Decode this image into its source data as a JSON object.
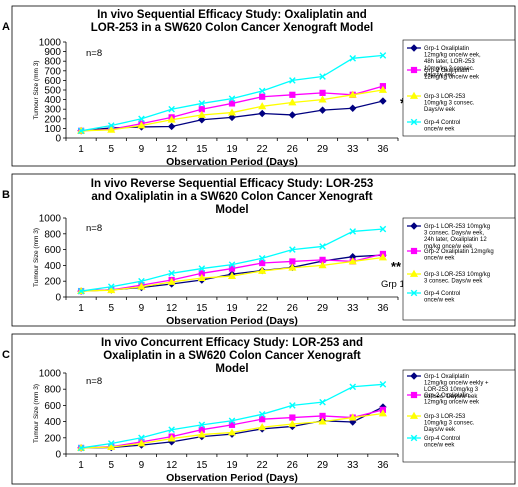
{
  "chart_data": [
    {
      "type": "line",
      "panel_letter": "A",
      "title_lines": [
        "In vivo Sequential Efficacy Study: Oxaliplatin and",
        "LOR-253 in a SW620 Colon Cancer Xenograft Model"
      ],
      "xlabel": "Observation Period (Days)",
      "ylabel": "Tumour Size (mm 3)",
      "categories": [
        "1",
        "5",
        "9",
        "12",
        "15",
        "19",
        "22",
        "26",
        "29",
        "33",
        "36"
      ],
      "yticks": [
        0,
        100,
        200,
        300,
        400,
        500,
        600,
        700,
        800,
        900,
        1000
      ],
      "ylim": [
        0,
        1000
      ],
      "n_label": "n=8",
      "annotation": "*",
      "grid": false,
      "legend_position": "right",
      "series": [
        {
          "name_lines": [
            "Grp-1 Oxaliplatin",
            "12mg/kg once/w eek,",
            "48h later, LOR-253",
            "10mg/kg 3 consec.",
            "days/w eek"
          ],
          "color": "#000080",
          "marker": "diamond",
          "values": [
            75,
            105,
            115,
            120,
            190,
            215,
            255,
            240,
            290,
            310,
            385
          ]
        },
        {
          "name_lines": [
            "Grp-2 Oxaliplatin",
            "12mg/kg once/w eek"
          ],
          "color": "#FF00FF",
          "marker": "square",
          "values": [
            75,
            90,
            150,
            215,
            300,
            360,
            430,
            450,
            470,
            450,
            540
          ]
        },
        {
          "name_lines": [
            "Grp-3 LOR-253",
            "10mg/kg 3 consec.",
            "Days/w eek"
          ],
          "color": "#FFFF00",
          "marker": "triangle",
          "values": [
            75,
            85,
            130,
            190,
            240,
            265,
            330,
            370,
            400,
            450,
            500
          ]
        },
        {
          "name_lines": [
            "Grp-4  Control",
            "once/w eek"
          ],
          "color": "#00FFFF",
          "marker": "x",
          "values": [
            75,
            130,
            200,
            300,
            360,
            410,
            490,
            600,
            640,
            830,
            860
          ]
        }
      ]
    },
    {
      "type": "line",
      "panel_letter": "B",
      "title_lines": [
        "In vivo Reverse Sequential Efficacy Study: LOR-253",
        "and Oxaliplatin in a SW620 Colon Cancer Xenograft",
        "Model"
      ],
      "xlabel": "Observation Period (Days)",
      "ylabel": "Tumour Size (mm 3)",
      "categories": [
        "1",
        "5",
        "9",
        "12",
        "15",
        "19",
        "22",
        "26",
        "29",
        "33",
        "36"
      ],
      "yticks": [
        0,
        200,
        400,
        600,
        800,
        1000
      ],
      "ylim": [
        0,
        1000
      ],
      "n_label": "n=8",
      "annotation": "**",
      "note": "Grp 1",
      "grid": false,
      "legend_position": "right",
      "series": [
        {
          "name_lines": [
            "Grp-1 LOR-253 10mg/kg",
            "3 consec. Days/w eek,",
            "24h later, Oxaliplatin 12",
            "mg/kg once/w eek"
          ],
          "color": "#000080",
          "marker": "diamond",
          "values": [
            75,
            90,
            120,
            165,
            215,
            290,
            335,
            375,
            455,
            510,
            530
          ]
        },
        {
          "name_lines": [
            "Grp-2 Oxaliplatin 12mg/kg",
            "once/w eek"
          ],
          "color": "#FF00FF",
          "marker": "square",
          "values": [
            75,
            90,
            150,
            215,
            300,
            360,
            430,
            450,
            470,
            450,
            545
          ]
        },
        {
          "name_lines": [
            "Grp-3 LOR-253 10mg/kg",
            "3 consec. Days/w eek"
          ],
          "color": "#FFFF00",
          "marker": "triangle",
          "values": [
            75,
            85,
            130,
            190,
            240,
            265,
            330,
            370,
            400,
            450,
            500
          ]
        },
        {
          "name_lines": [
            "Grp-4  Control",
            "once/w eek"
          ],
          "color": "#00FFFF",
          "marker": "x",
          "values": [
            75,
            130,
            200,
            300,
            360,
            410,
            490,
            600,
            640,
            830,
            860
          ]
        }
      ]
    },
    {
      "type": "line",
      "panel_letter": "C",
      "title_lines": [
        "In vivo Concurrent Efficacy Study: LOR-253 and",
        "Oxaliplatin in a SW620 Colon Cancer Xenograft",
        "Model"
      ],
      "xlabel": "Observation Period (Days)",
      "ylabel": "Tumour Size (mm 3)",
      "categories": [
        "1",
        "5",
        "9",
        "12",
        "15",
        "19",
        "22",
        "26",
        "29",
        "33",
        "36"
      ],
      "yticks": [
        0,
        200,
        400,
        600,
        800,
        1000
      ],
      "ylim": [
        0,
        1000
      ],
      "n_label": "n=8",
      "grid": false,
      "legend_position": "right",
      "series": [
        {
          "name_lines": [
            "Grp-1 Oxaliplatin",
            "12mg/kg once/w eekly +",
            "LOR-253 10mg/kg 3",
            "consec. Days/w eek"
          ],
          "color": "#000080",
          "marker": "diamond",
          "values": [
            75,
            80,
            110,
            150,
            215,
            245,
            310,
            340,
            410,
            395,
            580
          ]
        },
        {
          "name_lines": [
            "Grp-2 Oxaliplatin",
            "12mg/kg once/w eek"
          ],
          "color": "#FF00FF",
          "marker": "square",
          "values": [
            75,
            90,
            150,
            215,
            300,
            360,
            430,
            450,
            470,
            450,
            545
          ]
        },
        {
          "name_lines": [
            "Grp-3 LOR-253",
            "10mg/kg 3 consec.",
            "Days/w eek"
          ],
          "color": "#FFFF00",
          "marker": "triangle",
          "values": [
            75,
            85,
            130,
            190,
            240,
            265,
            330,
            370,
            400,
            450,
            500
          ]
        },
        {
          "name_lines": [
            "Grp-4  Control",
            "once/w eek"
          ],
          "color": "#00FFFF",
          "marker": "x",
          "values": [
            75,
            130,
            200,
            300,
            360,
            410,
            490,
            600,
            640,
            830,
            860
          ]
        }
      ]
    }
  ]
}
